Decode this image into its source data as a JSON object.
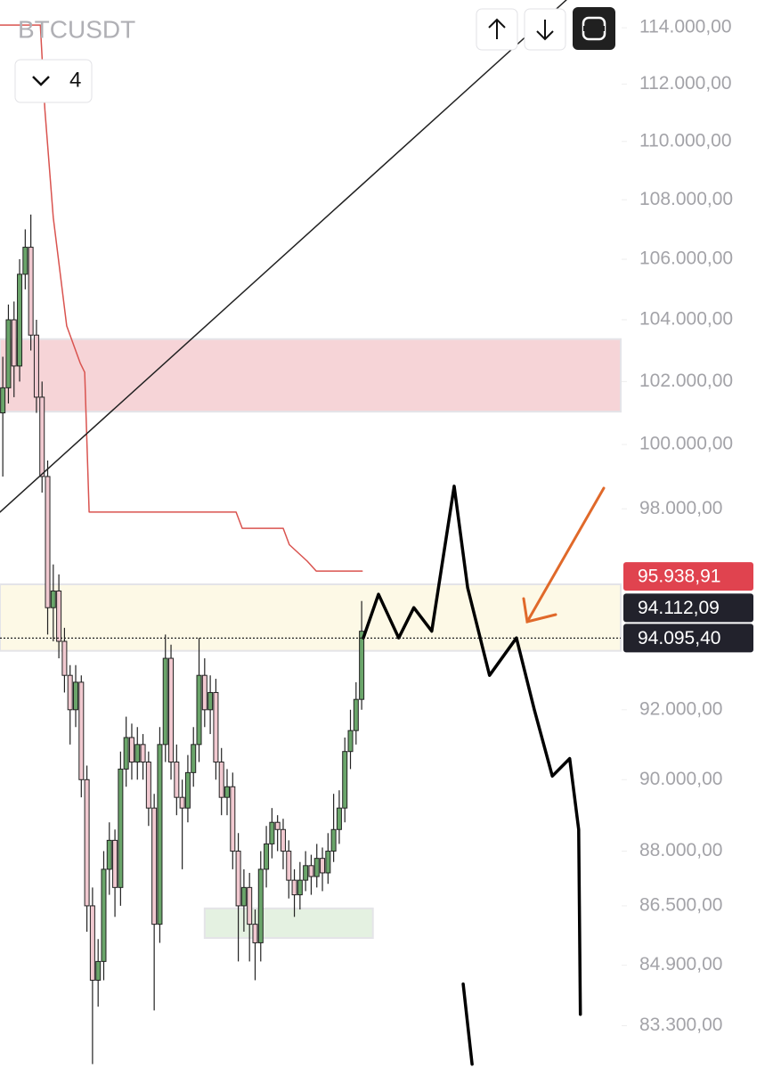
{
  "chart_data": {
    "type": "candlestick",
    "title": "BTCUSDT",
    "interval_badge": "4",
    "log_scale": true,
    "xlim": [
      -0.5,
      110.2
    ],
    "ylim": [
      82200,
      115000
    ],
    "yticks": [
      {
        "value": 114000,
        "label": "114.000,00"
      },
      {
        "value": 112000,
        "label": "112.000,00"
      },
      {
        "value": 110000,
        "label": "110.000,00"
      },
      {
        "value": 108000,
        "label": "108.000,00"
      },
      {
        "value": 106000,
        "label": "106.000,00"
      },
      {
        "value": 104000,
        "label": "104.000,00"
      },
      {
        "value": 102000,
        "label": "102.000,00"
      },
      {
        "value": 100000,
        "label": "100.000,00"
      },
      {
        "value": 98000,
        "label": "98.000,00"
      },
      {
        "value": 92000,
        "label": "92.000,00"
      },
      {
        "value": 90000,
        "label": "90.000,00"
      },
      {
        "value": 88000,
        "label": "88.000,00"
      },
      {
        "value": 86500,
        "label": "86.500,00"
      },
      {
        "value": 84900,
        "label": "84.900,00"
      },
      {
        "value": 83300,
        "label": "83.300,00"
      }
    ],
    "up_color": "#6aa56a",
    "down_color": "#f1c9d0",
    "ohlc": [
      [
        101000,
        102800,
        99000,
        101800
      ],
      [
        101800,
        104500,
        101300,
        104000
      ],
      [
        104000,
        104600,
        101500,
        102500
      ],
      [
        102500,
        106000,
        102000,
        105500
      ],
      [
        105500,
        107000,
        105000,
        106400
      ],
      [
        106400,
        107500,
        103000,
        103500
      ],
      [
        103500,
        104000,
        101000,
        101500
      ],
      [
        101500,
        102000,
        98500,
        99000
      ],
      [
        99000,
        99500,
        94200,
        95000
      ],
      [
        95000,
        96300,
        94000,
        95500
      ],
      [
        95500,
        96000,
        93500,
        94000
      ],
      [
        94000,
        94400,
        92500,
        93000
      ],
      [
        93000,
        93300,
        91000,
        92000
      ],
      [
        92000,
        93300,
        91500,
        92800
      ],
      [
        92800,
        93000,
        89500,
        90000
      ],
      [
        90000,
        90400,
        85800,
        86500
      ],
      [
        86500,
        87000,
        82300,
        84500
      ],
      [
        84500,
        85600,
        83800,
        85000
      ],
      [
        85000,
        88000,
        84500,
        87500
      ],
      [
        87500,
        88800,
        86800,
        88300
      ],
      [
        88300,
        88600,
        86200,
        87000
      ],
      [
        87000,
        90800,
        86500,
        90300
      ],
      [
        90300,
        91800,
        89800,
        91200
      ],
      [
        91200,
        91600,
        90000,
        90500
      ],
      [
        90500,
        91500,
        90000,
        91000
      ],
      [
        91000,
        91300,
        90000,
        90500
      ],
      [
        90500,
        90800,
        88700,
        89200
      ],
      [
        89200,
        89600,
        83700,
        86000
      ],
      [
        86000,
        91500,
        85500,
        91000
      ],
      [
        91000,
        94200,
        90500,
        93500
      ],
      [
        93500,
        93900,
        90000,
        90500
      ],
      [
        90500,
        91000,
        89000,
        89500
      ],
      [
        89500,
        90000,
        87500,
        89200
      ],
      [
        89200,
        90700,
        88800,
        90200
      ],
      [
        90200,
        91500,
        89800,
        91000
      ],
      [
        91000,
        94100,
        90500,
        93000
      ],
      [
        93000,
        93500,
        91500,
        92000
      ],
      [
        92000,
        93000,
        91300,
        92500
      ],
      [
        92500,
        92900,
        90000,
        90500
      ],
      [
        90500,
        90900,
        89000,
        89500
      ],
      [
        89500,
        90300,
        89000,
        89800
      ],
      [
        89800,
        90200,
        87500,
        88000
      ],
      [
        88000,
        88500,
        85000,
        86500
      ],
      [
        86500,
        87500,
        85800,
        87000
      ],
      [
        87000,
        87400,
        85000,
        86000
      ],
      [
        86000,
        86400,
        84500,
        85500
      ],
      [
        85500,
        88000,
        85000,
        87500
      ],
      [
        87500,
        88700,
        87000,
        88200
      ],
      [
        88200,
        89200,
        87800,
        88800
      ],
      [
        88800,
        89000,
        88000,
        88600
      ],
      [
        88600,
        88900,
        87500,
        88000
      ],
      [
        88000,
        88300,
        86700,
        87200
      ],
      [
        87200,
        87500,
        86200,
        86800
      ],
      [
        86800,
        87700,
        86400,
        87200
      ],
      [
        87200,
        88000,
        86900,
        87600
      ],
      [
        87600,
        87900,
        86800,
        87300
      ],
      [
        87300,
        88200,
        87000,
        87800
      ],
      [
        87800,
        88100,
        86900,
        87400
      ],
      [
        87400,
        88500,
        87100,
        88000
      ],
      [
        88000,
        89600,
        87700,
        88600
      ],
      [
        88600,
        89700,
        88200,
        89200
      ],
      [
        89200,
        91200,
        88800,
        90800
      ],
      [
        90800,
        92000,
        90300,
        91400
      ],
      [
        91400,
        92800,
        91000,
        92300
      ],
      [
        92300,
        95200,
        92000,
        94300
      ]
    ],
    "zones": [
      {
        "color": "#f6d4d7",
        "ylim": [
          101040,
          103370
        ]
      },
      {
        "color": "#fdf9e6",
        "ylim": [
          93720,
          95700
        ]
      },
      {
        "color": "#e4f1e1",
        "ylim": [
          85630,
          86430
        ],
        "xlim": [
          36,
          66
        ]
      }
    ],
    "lines": [
      {
        "color": "#d9534f",
        "width": 1.5,
        "x": [
          -0.5,
          6.7,
          7.5,
          9,
          11.4,
          13.8,
          14.6,
          15.4,
          41.6,
          42.7,
          50,
          51.1,
          54.3,
          55.9,
          64.1
        ],
        "values": [
          114100,
          114100,
          111100,
          107400,
          103800,
          102600,
          102300,
          97900,
          97900,
          97400,
          97400,
          96900,
          96400,
          96100,
          96100
        ]
      },
      {
        "color": "#222222",
        "width": 1.5,
        "x": [
          -0.5,
          100.5
        ],
        "values": [
          97900,
          115000
        ]
      },
      {
        "color": "#000000",
        "width": 3.5,
        "x": [
          64.3,
          67,
          70.6,
          73.3,
          76.5,
          80.5,
          82.9,
          86.8,
          91.6,
          94.8,
          98,
          101.1,
          102.7,
          103,
          0,
          82.1,
          83.7
        ],
        "values": [
          94100,
          95400,
          94100,
          95000,
          94300,
          98700,
          95600,
          93000,
          94100,
          92000,
          90100,
          90600,
          88600,
          83600,
          null,
          84400,
          82300
        ]
      }
    ],
    "price_labels": [
      {
        "value": 95938.91,
        "label": "95.938,91",
        "color": "#e0434f"
      },
      {
        "value": 94112.09,
        "label": "94.112,09",
        "color": "#22222c"
      },
      {
        "value": 94095.4,
        "label": "94.095,40",
        "color": "#22222c"
      }
    ]
  }
}
